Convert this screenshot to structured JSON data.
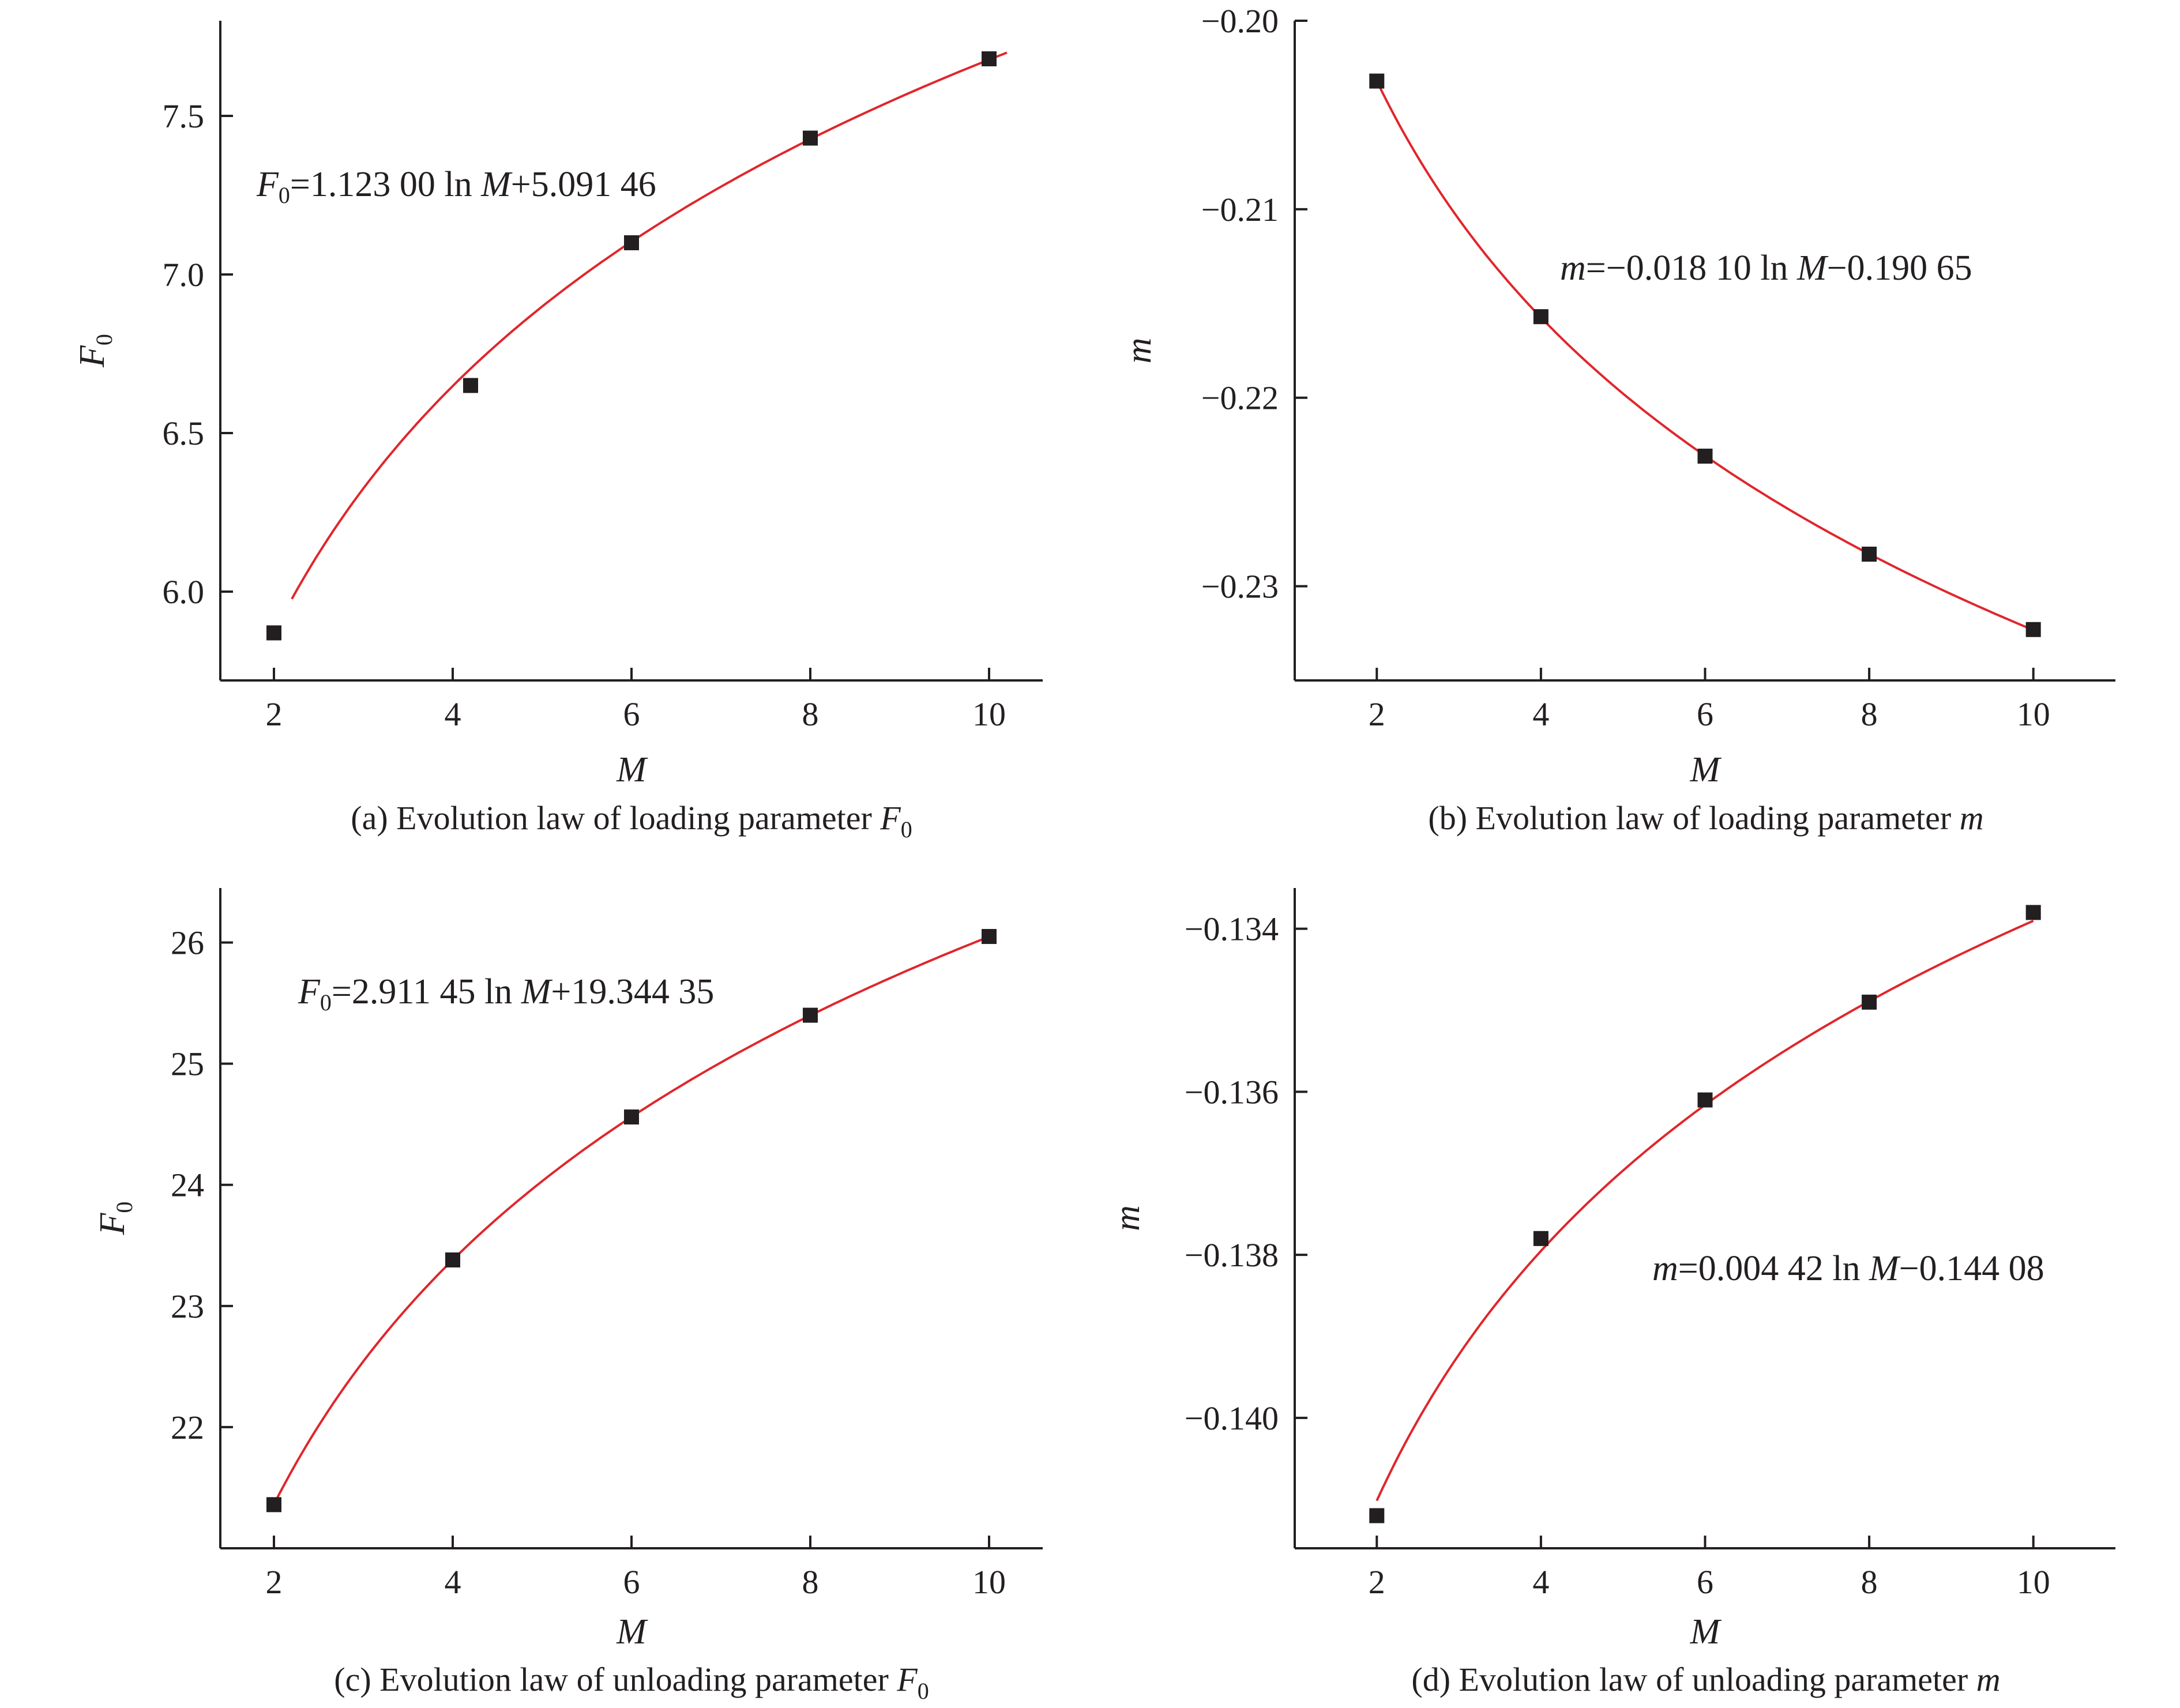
{
  "chart_data": [
    {
      "type": "scatter",
      "panel": "a",
      "caption": {
        "text": "(a) Evolution law of loading parameter ",
        "symbol": "F",
        "sub": "0"
      },
      "xlabel": "M",
      "ylabel": {
        "symbol": "F",
        "sub": "0"
      },
      "xlim": [
        1.4,
        10.6
      ],
      "ylim": [
        5.72,
        7.8
      ],
      "xticks": [
        2,
        4,
        6,
        8,
        10
      ],
      "xtick_labels": [
        "2",
        "4",
        "6",
        "8",
        "10"
      ],
      "yticks": [
        6.0,
        6.5,
        7.0,
        7.5
      ],
      "ytick_labels": [
        "6.0",
        "6.5",
        "7.0",
        "7.5"
      ],
      "x": [
        2,
        4.2,
        6,
        8,
        10
      ],
      "y": [
        5.87,
        6.65,
        7.1,
        7.43,
        7.68
      ],
      "fit": {
        "a": 1.123,
        "b": 5.09146,
        "x_from": 2.2,
        "x_to": 10.2,
        "parts": [
          "F",
          "0",
          "=1.123 00 ln ",
          "M",
          "+5.091 46"
        ]
      },
      "marker_color": "#231f20",
      "fit_color": "#e0262b"
    },
    {
      "type": "scatter",
      "panel": "b",
      "caption": {
        "text": "(b) Evolution law of loading parameter ",
        "symbol": "m",
        "sub": ""
      },
      "xlabel": "M",
      "ylabel": {
        "symbol": "m",
        "sub": ""
      },
      "xlim": [
        1.0,
        11.0
      ],
      "ylim": [
        -0.235,
        -0.2
      ],
      "xticks": [
        2,
        4,
        6,
        8,
        10
      ],
      "xtick_labels": [
        "2",
        "4",
        "6",
        "8",
        "10"
      ],
      "yticks": [
        -0.2,
        -0.21,
        -0.22,
        -0.23
      ],
      "ytick_labels": [
        "−0.20",
        "−0.21",
        "−0.22",
        "−0.23"
      ],
      "x": [
        2,
        4,
        6,
        8,
        10
      ],
      "y": [
        -0.2032,
        -0.2157,
        -0.2231,
        -0.2283,
        -0.2323
      ],
      "fit": {
        "a": -0.0181,
        "b": -0.19065,
        "x_from": 2,
        "x_to": 10,
        "parts": [
          "m",
          "",
          "=−0.018 10 ln ",
          "M",
          "−0.190 65"
        ]
      },
      "marker_color": "#231f20",
      "fit_color": "#e0262b"
    },
    {
      "type": "scatter",
      "panel": "c",
      "caption": {
        "text": "(c) Evolution law of unloading parameter ",
        "symbol": "F",
        "sub": "0"
      },
      "xlabel": "M",
      "ylabel": {
        "symbol": "F",
        "sub": "0"
      },
      "xlim": [
        1.4,
        10.6
      ],
      "ylim": [
        21.0,
        26.45
      ],
      "xticks": [
        2,
        4,
        6,
        8,
        10
      ],
      "xtick_labels": [
        "2",
        "4",
        "6",
        "8",
        "10"
      ],
      "yticks": [
        22,
        23,
        24,
        25,
        26
      ],
      "ytick_labels": [
        "22",
        "23",
        "24",
        "25",
        "26"
      ],
      "x": [
        2,
        4,
        6,
        8,
        10
      ],
      "y": [
        21.36,
        23.38,
        24.56,
        25.4,
        26.05
      ],
      "fit": {
        "a": 2.91145,
        "b": 19.34435,
        "x_from": 2,
        "x_to": 10,
        "parts": [
          "F",
          "0",
          "=2.911 45 ln ",
          "M",
          "+19.344 35"
        ]
      },
      "marker_color": "#231f20",
      "fit_color": "#e0262b"
    },
    {
      "type": "scatter",
      "panel": "d",
      "caption": {
        "text": "(d) Evolution law of unloading parameter ",
        "symbol": "m",
        "sub": ""
      },
      "xlabel": "M",
      "ylabel": {
        "symbol": "m",
        "sub": ""
      },
      "xlim": [
        1.0,
        11.0
      ],
      "ylim": [
        -0.1416,
        -0.1335
      ],
      "xticks": [
        2,
        4,
        6,
        8,
        10
      ],
      "xtick_labels": [
        "2",
        "4",
        "6",
        "8",
        "10"
      ],
      "yticks": [
        -0.134,
        -0.136,
        -0.138,
        -0.14
      ],
      "ytick_labels": [
        "−0.134",
        "−0.136",
        "−0.138",
        "−0.140"
      ],
      "x": [
        2,
        4,
        6,
        8,
        10
      ],
      "y": [
        -0.1412,
        -0.1378,
        -0.1361,
        -0.1349,
        -0.1338
      ],
      "fit": {
        "a": 0.00442,
        "b": -0.14408,
        "x_from": 2,
        "x_to": 10,
        "parts": [
          "m",
          "",
          "=0.004 42 ln ",
          "M",
          "−0.144 08"
        ]
      },
      "marker_color": "#231f20",
      "fit_color": "#e0262b"
    }
  ]
}
